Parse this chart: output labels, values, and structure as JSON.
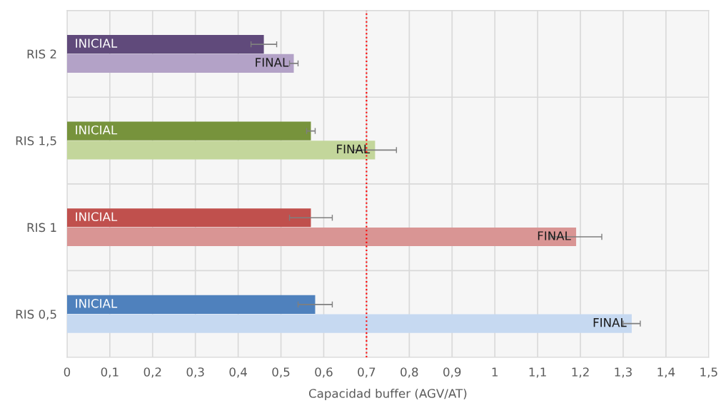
{
  "chart_data": {
    "type": "bar",
    "orientation": "horizontal",
    "xlabel": "Capacidad buffer (AGV/AT)",
    "categories": [
      "RIS 2",
      "RIS 1,5",
      "RIS 1",
      "RIS 0,5"
    ],
    "series": [
      {
        "name": "INICIAL",
        "colors": [
          "#604a7b",
          "#77933c",
          "#c0504d",
          "#4f81bd"
        ],
        "values": [
          0.46,
          0.57,
          0.57,
          0.58
        ],
        "errors": [
          [
            0.43,
            0.49
          ],
          [
            0.56,
            0.58
          ],
          [
            0.52,
            0.62
          ],
          [
            0.54,
            0.62
          ]
        ]
      },
      {
        "name": "FINAL",
        "colors": [
          "#b3a2c7",
          "#c3d69b",
          "#d99594",
          "#c6d9f1"
        ],
        "values": [
          0.53,
          0.72,
          1.19,
          1.32
        ],
        "errors": [
          [
            0.52,
            0.54
          ],
          [
            0.67,
            0.77
          ],
          [
            1.13,
            1.25
          ],
          [
            1.3,
            1.34
          ]
        ]
      }
    ],
    "xlim": [
      0,
      1.5
    ],
    "xticks": [
      0,
      {
        "value": 0.1,
        "label": "0,1"
      },
      {
        "value": 0.2,
        "label": "0,2"
      },
      {
        "value": 0.3,
        "label": "0,3"
      },
      {
        "value": 0.4,
        "label": "0,4"
      },
      {
        "value": 0.5,
        "label": "0,5"
      },
      {
        "value": 0.6,
        "label": "0,6"
      },
      {
        "value": 0.7,
        "label": "0,7"
      },
      {
        "value": 0.8,
        "label": "0,8"
      },
      {
        "value": 0.9,
        "label": "0,9"
      },
      1,
      {
        "value": 1.1,
        "label": "1,1"
      },
      {
        "value": 1.2,
        "label": "1,2"
      },
      {
        "value": 1.3,
        "label": "1,3"
      },
      {
        "value": 1.4,
        "label": "1,4"
      },
      {
        "value": 1.5,
        "label": "1,5"
      }
    ],
    "ref_lines": [
      {
        "axis": "x",
        "value": 0.7,
        "color": "#ff0000",
        "line_style": "dotted"
      }
    ],
    "grid": true,
    "legend": false
  }
}
